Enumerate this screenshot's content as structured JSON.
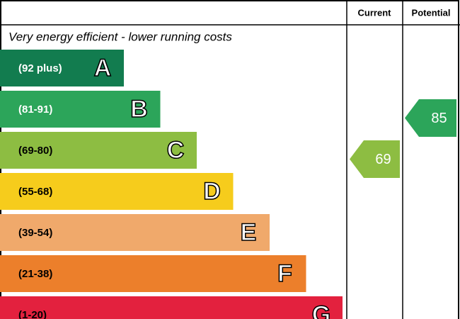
{
  "header": {
    "current": "Current",
    "potential": "Potential"
  },
  "subtitle": "Very energy efficient - lower running costs",
  "bands": [
    {
      "range": "(92 plus)",
      "letter": "A",
      "color": "#127c4f"
    },
    {
      "range": "(81-91)",
      "letter": "B",
      "color": "#2ca55a"
    },
    {
      "range": "(69-80)",
      "letter": "C",
      "color": "#8dbd42"
    },
    {
      "range": "(55-68)",
      "letter": "D",
      "color": "#f6cc1c"
    },
    {
      "range": "(39-54)",
      "letter": "E",
      "color": "#f0a96b"
    },
    {
      "range": "(21-38)",
      "letter": "F",
      "color": "#ec7f2b"
    },
    {
      "range": "(1-20)",
      "letter": "G",
      "color": "#e3213e"
    }
  ],
  "current": {
    "value": 69
  },
  "potential": {
    "value": 85
  }
}
